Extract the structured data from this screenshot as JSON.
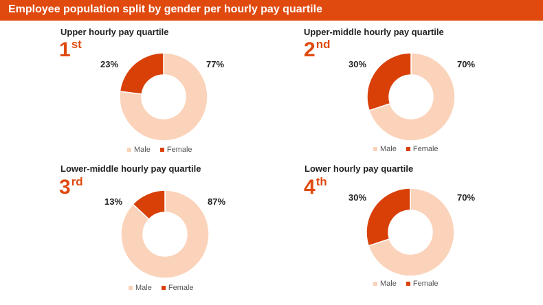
{
  "header": {
    "title": "Employee population split by gender per hourly pay quartile",
    "color": "#E04A0F"
  },
  "colors": {
    "male": "#FBD3BA",
    "female": "#D94008",
    "accent": "#E04A0F"
  },
  "chart_data": [
    {
      "type": "pie",
      "title": "Upper hourly pay quartile",
      "ordinal": "1",
      "ordinal_suffix": "st",
      "categories": [
        "Male",
        "Female"
      ],
      "values": [
        77,
        23
      ],
      "labels": [
        "77%",
        "23%"
      ],
      "legend": [
        "Male",
        "Female"
      ]
    },
    {
      "type": "pie",
      "title": "Upper-middle hourly pay quartile",
      "ordinal": "2",
      "ordinal_suffix": "nd",
      "categories": [
        "Male",
        "Female"
      ],
      "values": [
        70,
        30
      ],
      "labels": [
        "70%",
        "30%"
      ],
      "legend": [
        "Male",
        "Female"
      ]
    },
    {
      "type": "pie",
      "title": "Lower-middle hourly pay quartile",
      "ordinal": "3",
      "ordinal_suffix": "rd",
      "categories": [
        "Male",
        "Female"
      ],
      "values": [
        87,
        13
      ],
      "labels": [
        "87%",
        "13%"
      ],
      "legend": [
        "Male",
        "Female"
      ]
    },
    {
      "type": "pie",
      "title": "Lower hourly pay quartile",
      "ordinal": "4",
      "ordinal_suffix": "th",
      "categories": [
        "Male",
        "Female"
      ],
      "values": [
        70,
        30
      ],
      "labels": [
        "70%",
        "30%"
      ],
      "legend": [
        "Male",
        "Female"
      ]
    }
  ]
}
